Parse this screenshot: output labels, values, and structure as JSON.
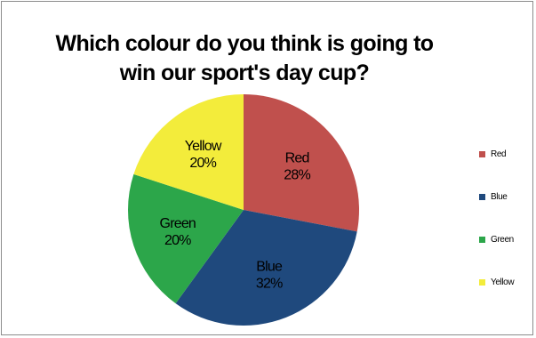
{
  "chart_data": {
    "type": "pie",
    "title": "Which colour do you think is going to win our sport's day cup?",
    "categories": [
      "Red",
      "Blue",
      "Green",
      "Yellow"
    ],
    "values": [
      28,
      32,
      20,
      20
    ],
    "value_labels": [
      "28%",
      "32%",
      "20%",
      "20%"
    ],
    "colors": [
      "#c0504d",
      "#1f497d",
      "#2ca64a",
      "#f3ec3b"
    ],
    "legend_position": "right",
    "start_angle_deg": 0,
    "direction": "clockwise"
  }
}
